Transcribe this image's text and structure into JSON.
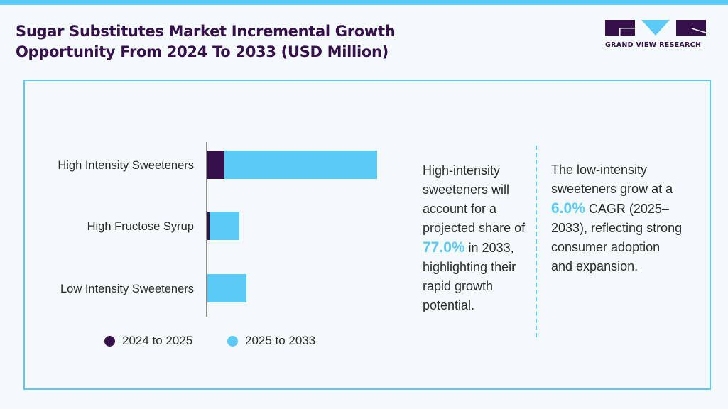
{
  "title_line1": "Sugar Substitutes Market Incremental Growth",
  "title_line2": "Opportunity From 2024 To 2033 (USD Million)",
  "logo": {
    "text": "GRAND VIEW RESEARCH"
  },
  "colors": {
    "dark": "#35104a",
    "light": "#5ccaf6",
    "axis": "#8f8f8f"
  },
  "chart_data": {
    "type": "bar",
    "orientation": "horizontal",
    "stacked": true,
    "categories": [
      "High Intensity Sweeteners",
      "High Fructose Syrup",
      "Low Intensity Sweeteners"
    ],
    "series": [
      {
        "name": "2024 to 2025",
        "values": [
          25,
          4,
          1
        ]
      },
      {
        "name": "2025 to 2033",
        "values": [
          215,
          42,
          55
        ]
      }
    ],
    "xlim": [
      0,
      240
    ],
    "grid": false,
    "legend": "bottom"
  },
  "notes": {
    "left": {
      "p1": "High-intensity sweeteners will account for a projected share of ",
      "value": "77.0%",
      "p2": " in 2033, highlighting their rapid growth potential."
    },
    "right": {
      "p1": "The low-intensity sweeteners grow at a ",
      "value": "6.0%",
      "p2": " CAGR (2025–2033), reflecting strong consumer adoption and expansion."
    }
  }
}
